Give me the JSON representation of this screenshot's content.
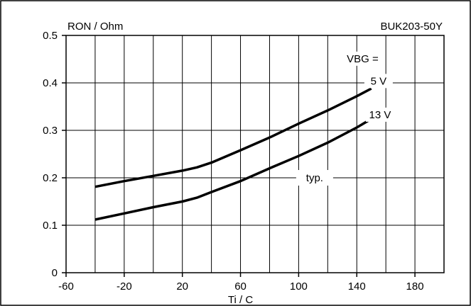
{
  "chart_data": {
    "type": "line",
    "title": "",
    "ylabel": "RON / Ohm",
    "xlabel": "Ti / C",
    "part_number": "BUK203-50Y",
    "xlim": [
      -60,
      200
    ],
    "ylim": [
      0,
      0.5
    ],
    "x_ticks": [
      "-60",
      "-20",
      "20",
      "60",
      "100",
      "140",
      "180"
    ],
    "y_ticks": [
      "0",
      "0.1",
      "0.2",
      "0.3",
      "0.4",
      "0.5"
    ],
    "grid": true,
    "legend_title": "VBG =",
    "series": [
      {
        "name": "5 V",
        "x": [
          -40,
          -20,
          0,
          20,
          30,
          40,
          60,
          80,
          100,
          120,
          140,
          150
        ],
        "y": [
          0.181,
          0.193,
          0.204,
          0.215,
          0.222,
          0.232,
          0.258,
          0.285,
          0.314,
          0.342,
          0.372,
          0.388
        ]
      },
      {
        "name": "13 V",
        "x": [
          -40,
          -20,
          0,
          20,
          30,
          40,
          60,
          80,
          100,
          120,
          140,
          150
        ],
        "y": [
          0.112,
          0.125,
          0.138,
          0.15,
          0.158,
          0.17,
          0.193,
          0.22,
          0.246,
          0.274,
          0.306,
          0.324
        ]
      }
    ],
    "annotation": "typ."
  }
}
